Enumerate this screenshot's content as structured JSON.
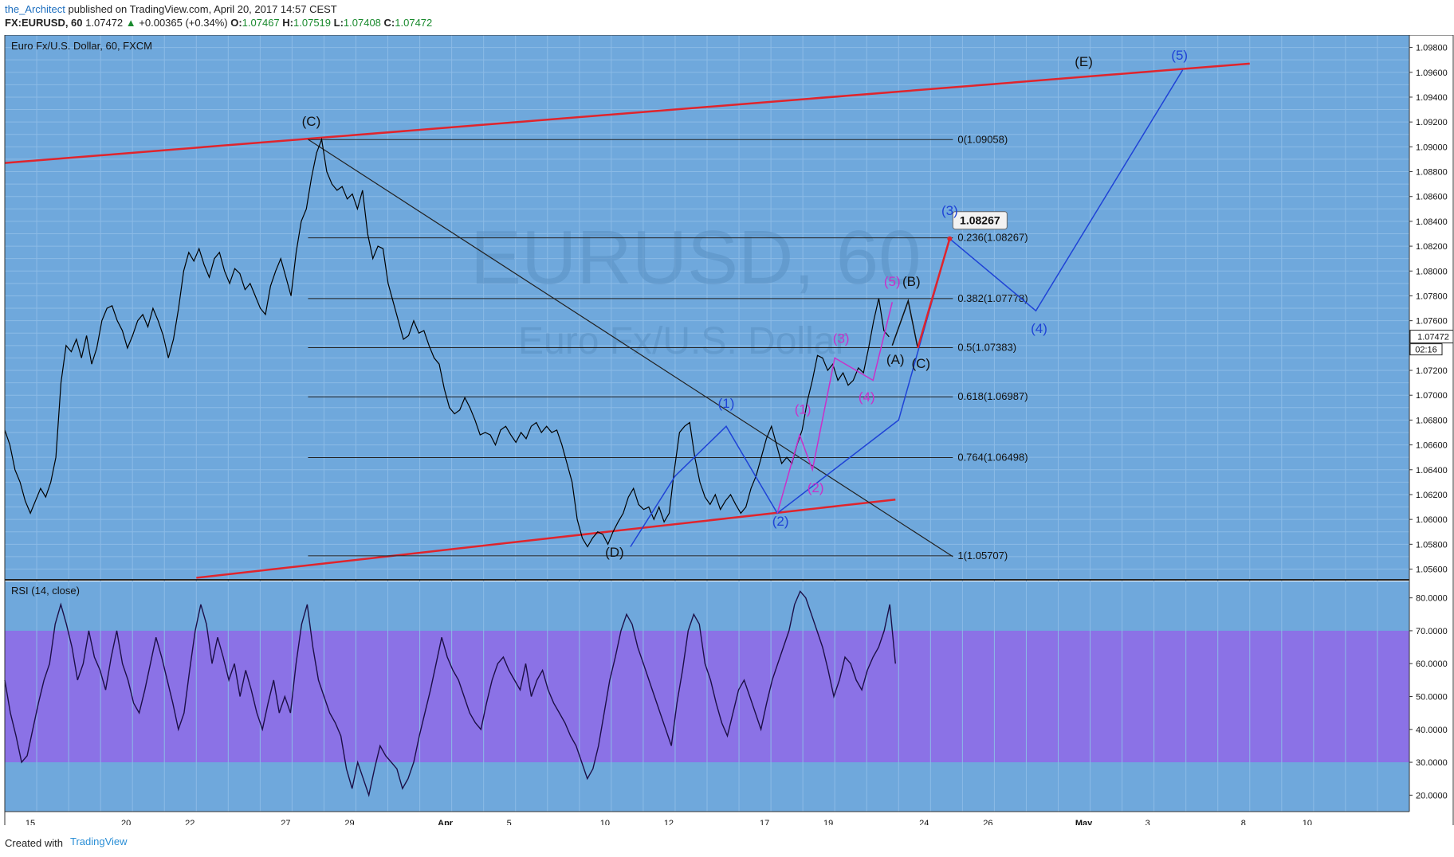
{
  "header": {
    "author": "the_Architect",
    "published": "published on TradingView.com, April 20, 2017 14:57 CEST",
    "symbol": "FX:EURUSD, 60",
    "last": "1.07472",
    "change": "+0.00365 (+0.34%)",
    "o_label": "O:",
    "o": "1.07467",
    "h_label": "H:",
    "h": "1.07519",
    "l_label": "L:",
    "l": "1.07408",
    "c_label": "C:",
    "c": "1.07472"
  },
  "footer": {
    "created": "Created with",
    "brand": "TradingView"
  },
  "colors": {
    "background": "#6fa8dc",
    "rsi_band": "#8b72e6",
    "trendline": "#e0242c",
    "wave_blue": "#1f43d6",
    "wave_magenta": "#c930c9"
  },
  "chart_data": [
    {
      "type": "line",
      "title": "Euro Fx/U.S. Dollar, 60, FXCM",
      "watermark": "EURUSD, 60",
      "watermark_sub": "Euro Fx/U.S. Dollar",
      "x_ticks": [
        "15",
        "20",
        "22",
        "27",
        "29",
        "Apr",
        "5",
        "10",
        "12",
        "17",
        "19",
        "24",
        "26",
        "May",
        "3",
        "8",
        "10"
      ],
      "y_ticks": [
        "1.09800",
        "1.09600",
        "1.09400",
        "1.09200",
        "1.09000",
        "1.08800",
        "1.08600",
        "1.08400",
        "1.08200",
        "1.08000",
        "1.07800",
        "1.07600",
        "1.07472",
        "1.07200",
        "1.07000",
        "1.06800",
        "1.06600",
        "1.06400",
        "1.06200",
        "1.06000",
        "1.05800",
        "1.05600"
      ],
      "ylim": [
        1.0552,
        1.099
      ],
      "last_price": 1.07472,
      "countdown": "02:16",
      "price_series": [
        1.0672,
        1.066,
        1.064,
        1.063,
        1.0615,
        1.0605,
        1.0615,
        1.0625,
        1.0618,
        1.063,
        1.065,
        1.071,
        1.074,
        1.0735,
        1.0745,
        1.073,
        1.0748,
        1.0725,
        1.0738,
        1.076,
        1.077,
        1.0772,
        1.076,
        1.0752,
        1.0738,
        1.0748,
        1.076,
        1.0765,
        1.0755,
        1.077,
        1.076,
        1.0748,
        1.073,
        1.0745,
        1.077,
        1.08,
        1.0815,
        1.0808,
        1.0818,
        1.0805,
        1.0795,
        1.081,
        1.0815,
        1.08,
        1.079,
        1.0802,
        1.0798,
        1.0785,
        1.079,
        1.078,
        1.077,
        1.0765,
        1.0788,
        1.08,
        1.081,
        1.0795,
        1.078,
        1.0815,
        1.084,
        1.085,
        1.0875,
        1.0895,
        1.0906,
        1.088,
        1.087,
        1.0865,
        1.0868,
        1.0858,
        1.0862,
        1.085,
        1.0865,
        1.083,
        1.081,
        1.082,
        1.0818,
        1.079,
        1.0775,
        1.076,
        1.0745,
        1.0748,
        1.076,
        1.075,
        1.0752,
        1.074,
        1.073,
        1.0725,
        1.0705,
        1.069,
        1.0685,
        1.0688,
        1.0698,
        1.069,
        1.068,
        1.0668,
        1.067,
        1.0668,
        1.066,
        1.0672,
        1.0675,
        1.0668,
        1.0662,
        1.067,
        1.0665,
        1.0675,
        1.0678,
        1.067,
        1.0675,
        1.067,
        1.0672,
        1.066,
        1.0645,
        1.063,
        1.06,
        1.0585,
        1.0578,
        1.0585,
        1.059,
        1.0588,
        1.058,
        1.059,
        1.0598,
        1.0605,
        1.0618,
        1.0625,
        1.0612,
        1.0608,
        1.061,
        1.06,
        1.061,
        1.0598,
        1.0605,
        1.064,
        1.067,
        1.0675,
        1.0678,
        1.065,
        1.063,
        1.0618,
        1.0612,
        1.062,
        1.0608,
        1.0615,
        1.062,
        1.0612,
        1.0605,
        1.061,
        1.0625,
        1.0635,
        1.065,
        1.0665,
        1.0675,
        1.066,
        1.0645,
        1.065,
        1.0645,
        1.066,
        1.0672,
        1.0695,
        1.0712,
        1.0732,
        1.073,
        1.072,
        1.0725,
        1.0712,
        1.0718,
        1.0708,
        1.0712,
        1.0722,
        1.0718,
        1.0738,
        1.076,
        1.0778,
        1.0752,
        1.0747
      ],
      "rsi": {
        "title": "RSI (14, close)",
        "ylim": [
          15,
          85
        ],
        "y_ticks": [
          "80.0000",
          "70.0000",
          "60.0000",
          "50.0000",
          "40.0000",
          "30.0000",
          "20.0000"
        ],
        "band": [
          30,
          70
        ],
        "values": [
          55,
          45,
          38,
          30,
          32,
          40,
          48,
          55,
          60,
          72,
          78,
          72,
          65,
          55,
          60,
          70,
          62,
          58,
          52,
          62,
          70,
          60,
          55,
          48,
          45,
          52,
          60,
          68,
          62,
          55,
          48,
          40,
          45,
          58,
          70,
          78,
          72,
          60,
          68,
          62,
          55,
          60,
          50,
          58,
          52,
          45,
          40,
          48,
          55,
          45,
          50,
          45,
          60,
          72,
          78,
          65,
          55,
          50,
          45,
          42,
          38,
          28,
          22,
          30,
          25,
          20,
          28,
          35,
          32,
          30,
          28,
          22,
          25,
          30,
          38,
          45,
          52,
          60,
          68,
          62,
          58,
          55,
          50,
          45,
          42,
          40,
          48,
          55,
          60,
          62,
          58,
          55,
          52,
          60,
          50,
          55,
          58,
          52,
          48,
          45,
          42,
          38,
          35,
          30,
          25,
          28,
          35,
          45,
          55,
          62,
          70,
          75,
          72,
          65,
          60,
          55,
          50,
          45,
          40,
          35,
          48,
          58,
          70,
          75,
          72,
          60,
          55,
          48,
          42,
          38,
          45,
          52,
          55,
          50,
          45,
          40,
          48,
          55,
          60,
          65,
          70,
          78,
          82,
          80,
          75,
          70,
          65,
          58,
          50,
          55,
          62,
          60,
          55,
          52,
          58,
          62,
          65,
          70,
          78,
          60
        ]
      },
      "fib_levels": [
        {
          "label": "0(1.09058)",
          "value": 1.09058
        },
        {
          "label": "0.236(1.08267)",
          "value": 1.08267
        },
        {
          "label": "0.382(1.07778)",
          "value": 1.07778
        },
        {
          "label": "0.5(1.07383)",
          "value": 1.07383
        },
        {
          "label": "0.618(1.06987)",
          "value": 1.06987
        },
        {
          "label": "0.764(1.06498)",
          "value": 1.06498
        },
        {
          "label": "1(1.05707)",
          "value": 1.05707
        }
      ],
      "target_label": "1.08267",
      "wave_labels": [
        {
          "text": "(C)",
          "color": "#111111",
          "x": 27.7,
          "y": 1.0917
        },
        {
          "text": "(D)",
          "color": "#111111",
          "x": 10.0,
          "y": 1.057
        },
        {
          "text": "(E)",
          "color": "#111111",
          "x": 39.5,
          "y": 1.0965
        },
        {
          "text": "(1)",
          "color": "#1f43d6",
          "x": 13.9,
          "y": 1.069
        },
        {
          "text": "(2)",
          "color": "#1f43d6",
          "x": 16.9,
          "y": 1.0595
        },
        {
          "text": "(3)",
          "color": "#1f43d6",
          "x": 24.1,
          "y": 1.0845
        },
        {
          "text": "(4)",
          "color": "#1f43d6",
          "x": 27.0,
          "y": 1.075
        },
        {
          "text": "(5)",
          "color": "#1f43d6",
          "x": 36.9,
          "y": 1.097
        },
        {
          "text": "(1)",
          "color": "#c930c9",
          "x": 17.7,
          "y": 1.0685
        },
        {
          "text": "(2)",
          "color": "#c930c9",
          "x": 18.8,
          "y": 1.0622
        },
        {
          "text": "(3)",
          "color": "#c930c9",
          "x": 19.0,
          "y": 1.0742
        },
        {
          "text": "(4)",
          "color": "#c930c9",
          "x": 19.8,
          "y": 1.0695
        },
        {
          "text": "(5)",
          "color": "#c930c9",
          "x": 21.4,
          "y": 1.0788
        },
        {
          "text": "(B)",
          "color": "#111111",
          "x": 22.0,
          "y": 1.0788
        },
        {
          "text": "(A)",
          "color": "#111111",
          "x": 21.5,
          "y": 1.0725
        },
        {
          "text": "(C)",
          "color": "#111111",
          "x": 22.3,
          "y": 1.0722
        }
      ]
    }
  ]
}
